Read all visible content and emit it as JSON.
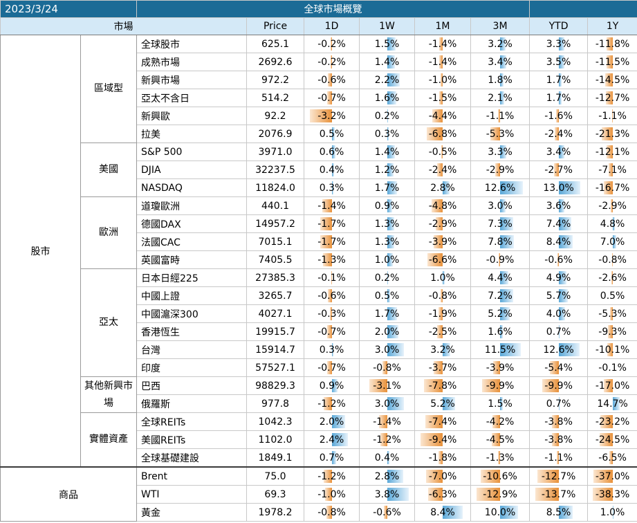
{
  "date": "2023/3/24",
  "title": "全球市場概覽",
  "headers": {
    "market": "市場",
    "price": "Price",
    "d1": "1D",
    "w1": "1W",
    "m1": "1M",
    "m3": "3M",
    "ytd": "YTD",
    "y1": "1Y"
  },
  "sections": [
    {
      "name": "股市",
      "groups": [
        {
          "name": "區域型",
          "rows": [
            {
              "name": "全球股市",
              "price": "625.1",
              "vals": [
                "-0.2%",
                "1.5%",
                "-1.4%",
                "3.2%",
                "3.3%",
                "-11.8%"
              ]
            },
            {
              "name": "成熟市場",
              "price": "2692.6",
              "vals": [
                "-0.2%",
                "1.4%",
                "-1.4%",
                "3.4%",
                "3.5%",
                "-11.5%"
              ]
            },
            {
              "name": "新興市場",
              "price": "972.2",
              "vals": [
                "-0.6%",
                "2.2%",
                "-1.0%",
                "1.8%",
                "1.7%",
                "-14.5%"
              ]
            },
            {
              "name": "亞太不含日",
              "price": "514.2",
              "vals": [
                "-0.7%",
                "1.6%",
                "-1.5%",
                "2.1%",
                "1.7%",
                "-12.7%"
              ]
            },
            {
              "name": "新興歐",
              "price": "92.2",
              "vals": [
                "-3.2%",
                "0.2%",
                "-4.4%",
                "-1.1%",
                "-1.6%",
                "-1.1%"
              ]
            },
            {
              "name": "拉美",
              "price": "2076.9",
              "vals": [
                "0.5%",
                "0.3%",
                "-6.8%",
                "-5.3%",
                "-2.4%",
                "-21.3%"
              ]
            }
          ]
        },
        {
          "name": "美國",
          "rows": [
            {
              "name": "S&P 500",
              "price": "3971.0",
              "vals": [
                "0.6%",
                "1.4%",
                "-0.5%",
                "3.3%",
                "3.4%",
                "-12.1%"
              ]
            },
            {
              "name": "DJIA",
              "price": "32237.5",
              "vals": [
                "0.4%",
                "1.2%",
                "-2.4%",
                "-2.9%",
                "-2.7%",
                "-7.1%"
              ]
            },
            {
              "name": "NASDAQ",
              "price": "11824.0",
              "vals": [
                "0.3%",
                "1.7%",
                "2.8%",
                "12.6%",
                "13.0%",
                "-16.7%"
              ]
            }
          ]
        },
        {
          "name": "歐洲",
          "rows": [
            {
              "name": "道瓊歐洲",
              "price": "440.1",
              "vals": [
                "-1.4%",
                "0.9%",
                "-4.8%",
                "3.0%",
                "3.6%",
                "-2.9%"
              ]
            },
            {
              "name": "德國DAX",
              "price": "14957.2",
              "vals": [
                "-1.7%",
                "1.3%",
                "-2.9%",
                "7.3%",
                "7.4%",
                "4.8%"
              ]
            },
            {
              "name": "法國CAC",
              "price": "7015.1",
              "vals": [
                "-1.7%",
                "1.3%",
                "-3.9%",
                "7.8%",
                "8.4%",
                "7.0%"
              ]
            },
            {
              "name": "英國富時",
              "price": "7405.5",
              "vals": [
                "-1.3%",
                "1.0%",
                "-6.6%",
                "-0.9%",
                "-0.6%",
                "-0.8%"
              ]
            }
          ]
        },
        {
          "name": "亞太",
          "rows": [
            {
              "name": "日本日經225",
              "price": "27385.3",
              "vals": [
                "-0.1%",
                "0.2%",
                "1.0%",
                "4.4%",
                "4.9%",
                "-2.6%"
              ]
            },
            {
              "name": "中國上證",
              "price": "3265.7",
              "vals": [
                "-0.6%",
                "0.5%",
                "-0.8%",
                "7.2%",
                "5.7%",
                "0.5%"
              ]
            },
            {
              "name": "中國滬深300",
              "price": "4027.1",
              "vals": [
                "-0.3%",
                "1.7%",
                "-1.9%",
                "5.2%",
                "4.0%",
                "-5.3%"
              ]
            },
            {
              "name": "香港恆生",
              "price": "19915.7",
              "vals": [
                "-0.7%",
                "2.0%",
                "-2.5%",
                "1.6%",
                "0.7%",
                "-9.3%"
              ]
            },
            {
              "name": "台灣",
              "price": "15914.7",
              "vals": [
                "0.3%",
                "3.0%",
                "3.2%",
                "11.5%",
                "12.6%",
                "-10.1%"
              ]
            },
            {
              "name": "印度",
              "price": "57527.1",
              "vals": [
                "-0.7%",
                "-0.8%",
                "-3.7%",
                "-3.9%",
                "-5.4%",
                "-0.1%"
              ]
            }
          ]
        },
        {
          "name": "其他新興市場",
          "rows": [
            {
              "name": "巴西",
              "price": "98829.3",
              "vals": [
                "0.9%",
                "-3.1%",
                "-7.8%",
                "-9.9%",
                "-9.9%",
                "-17.0%"
              ]
            },
            {
              "name": "俄羅斯",
              "price": "977.8",
              "vals": [
                "-1.2%",
                "3.0%",
                "5.2%",
                "1.5%",
                "0.7%",
                "14.7%"
              ]
            }
          ]
        },
        {
          "name": "實體資產",
          "rows": [
            {
              "name": "全球REITs",
              "price": "1042.3",
              "vals": [
                "2.0%",
                "-1.4%",
                "-7.4%",
                "-4.2%",
                "-3.8%",
                "-23.2%"
              ]
            },
            {
              "name": "美國REITs",
              "price": "1102.0",
              "vals": [
                "2.4%",
                "-1.2%",
                "-9.4%",
                "-4.5%",
                "-3.8%",
                "-24.5%"
              ]
            },
            {
              "name": "全球基礎建設",
              "price": "1849.1",
              "vals": [
                "0.7%",
                "0.4%",
                "-1.8%",
                "-1.3%",
                "-1.1%",
                "-6.5%"
              ]
            }
          ]
        }
      ]
    },
    {
      "name": "商品",
      "groups": [
        {
          "name": "",
          "rows": [
            {
              "name": "Brent",
              "price": "75.0",
              "vals": [
                "-1.2%",
                "2.8%",
                "-7.0%",
                "-10.6%",
                "-12.7%",
                "-37.0%"
              ]
            },
            {
              "name": "WTI",
              "price": "69.3",
              "vals": [
                "-1.0%",
                "3.8%",
                "-6.3%",
                "-12.9%",
                "-13.7%",
                "-38.3%"
              ]
            },
            {
              "name": "黃金",
              "price": "1978.2",
              "vals": [
                "-0.8%",
                "-0.6%",
                "8.4%",
                "10.0%",
                "8.5%",
                "1.0%"
              ]
            }
          ]
        }
      ]
    }
  ],
  "colors": {
    "title_bg": "#1b6b96",
    "header_bg": "#d4e9f7",
    "positive_bar": "#5aa8d8",
    "negative_bar": "#e8913a"
  }
}
